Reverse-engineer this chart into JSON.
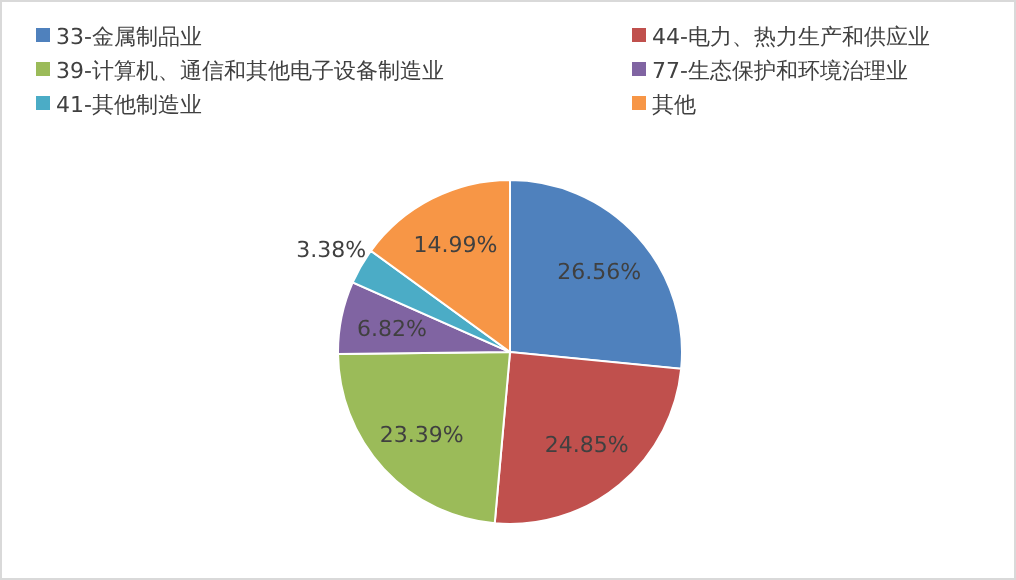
{
  "chart_data": {
    "type": "pie",
    "categories": [
      "33-金属制品业",
      "44-电力、热力生产和供应业",
      "39-计算机、通信和其他电子设备制造业",
      "77-生态保护和环境治理业",
      "41-其他制造业",
      "其他"
    ],
    "values": [
      26.56,
      24.85,
      23.39,
      6.82,
      3.38,
      14.99
    ],
    "colors": [
      "#4f81bd",
      "#c0504d",
      "#9bbb59",
      "#8064a2",
      "#4bacc6",
      "#f79646"
    ],
    "value_labels": [
      "26.56%",
      "24.85%",
      "23.39%",
      "6.82%",
      "3.38%",
      "14.99%"
    ],
    "legend": "top"
  }
}
